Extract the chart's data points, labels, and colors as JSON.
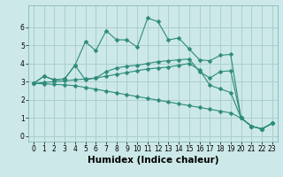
{
  "xlabel": "Humidex (Indice chaleur)",
  "x_values": [
    0,
    1,
    2,
    3,
    4,
    5,
    6,
    7,
    8,
    9,
    10,
    11,
    12,
    13,
    14,
    15,
    16,
    17,
    18,
    19,
    20,
    21,
    22,
    23
  ],
  "series": [
    [
      2.9,
      3.3,
      3.1,
      3.15,
      3.9,
      5.2,
      4.7,
      5.8,
      5.3,
      5.3,
      4.9,
      6.5,
      6.3,
      5.3,
      5.4,
      4.8,
      4.2,
      4.15,
      4.45,
      4.5,
      1.0,
      0.55,
      0.4,
      0.7
    ],
    [
      2.9,
      3.3,
      3.1,
      3.15,
      3.9,
      3.1,
      3.2,
      3.55,
      3.75,
      3.85,
      3.9,
      4.0,
      4.1,
      4.15,
      4.2,
      4.25,
      3.55,
      3.2,
      3.55,
      3.6,
      1.0,
      0.55,
      0.4,
      0.7
    ],
    [
      2.9,
      2.95,
      3.0,
      3.05,
      3.1,
      3.15,
      3.2,
      3.3,
      3.4,
      3.5,
      3.6,
      3.7,
      3.75,
      3.8,
      3.9,
      4.0,
      3.65,
      2.8,
      2.6,
      2.4,
      1.0,
      0.55,
      0.4,
      0.7
    ],
    [
      2.9,
      2.88,
      2.85,
      2.82,
      2.78,
      2.68,
      2.58,
      2.48,
      2.38,
      2.28,
      2.18,
      2.08,
      1.98,
      1.88,
      1.78,
      1.68,
      1.58,
      1.48,
      1.38,
      1.28,
      1.0,
      0.55,
      0.4,
      0.7
    ]
  ],
  "line_color": "#2e8b7a",
  "marker": "D",
  "markersize": 2.5,
  "linewidth": 0.8,
  "ylim": [
    -0.3,
    7.2
  ],
  "yticks": [
    0,
    1,
    2,
    3,
    4,
    5,
    6
  ],
  "xlim": [
    -0.5,
    23.5
  ],
  "xticks": [
    0,
    1,
    2,
    3,
    4,
    5,
    6,
    7,
    8,
    9,
    10,
    11,
    12,
    13,
    14,
    15,
    16,
    17,
    18,
    19,
    20,
    21,
    22,
    23
  ],
  "bg_color": "#cce8e8",
  "grid_color": "#aacfcf",
  "tick_fontsize": 5.5,
  "xlabel_fontsize": 7.5
}
